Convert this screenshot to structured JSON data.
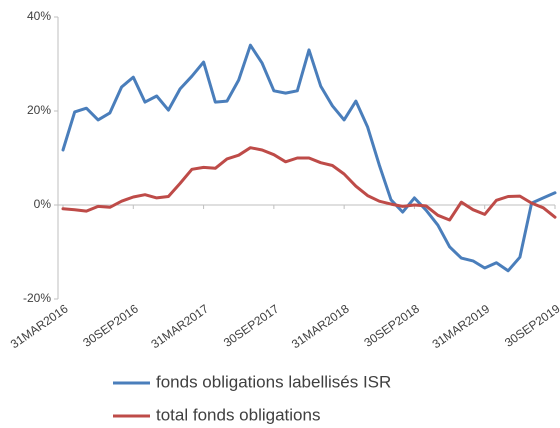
{
  "chart_data": {
    "type": "line",
    "categories": [
      "31MAR2016",
      null,
      null,
      null,
      null,
      null,
      "30SEP2016",
      null,
      null,
      null,
      null,
      null,
      "31MAR2017",
      null,
      null,
      null,
      null,
      null,
      "30SEP2017",
      null,
      null,
      null,
      null,
      null,
      "31MAR2018",
      null,
      null,
      null,
      null,
      null,
      "30SEP2018",
      null,
      null,
      null,
      null,
      null,
      "31MAR2019",
      null,
      null,
      null,
      null,
      null,
      "30SEP2019"
    ],
    "series": [
      {
        "name": "fonds obligations labellisés ISR",
        "color": "#4a7ebb",
        "values": [
          11.7,
          19.8,
          20.6,
          18.1,
          19.6,
          25.1,
          27.2,
          21.9,
          23.2,
          20.2,
          24.7,
          27.4,
          30.4,
          21.9,
          22.1,
          26.6,
          34.0,
          30.2,
          24.3,
          23.8,
          24.3,
          33.0,
          25.3,
          21.1,
          18.1,
          22.1,
          16.6,
          8.5,
          1.1,
          -1.5,
          1.5,
          -1.1,
          -4.3,
          -8.9,
          -11.3,
          -11.9,
          -13.4,
          -12.3,
          -14.0,
          -11.1,
          0.4,
          1.5,
          2.6
        ]
      },
      {
        "name": "total fonds obligations",
        "color": "#be4b48",
        "values": [
          -0.8,
          -1.0,
          -1.3,
          -0.3,
          -0.5,
          0.8,
          1.7,
          2.2,
          1.5,
          1.8,
          4.6,
          7.6,
          8.0,
          7.8,
          9.8,
          10.6,
          12.2,
          11.7,
          10.7,
          9.2,
          10.0,
          10.0,
          9.0,
          8.4,
          6.6,
          4.0,
          2.0,
          0.8,
          0.2,
          -0.3,
          0.0,
          -0.2,
          -2.2,
          -3.2,
          0.6,
          -1.0,
          -2.0,
          1.0,
          1.8,
          1.9,
          0.4,
          -0.6,
          -2.6
        ]
      }
    ],
    "ylim": [
      -20,
      40
    ],
    "yticks": [
      {
        "value": -20,
        "label": "-20%"
      },
      {
        "value": 0,
        "label": "0%"
      },
      {
        "value": 20,
        "label": "20%"
      },
      {
        "value": 40,
        "label": "40%"
      }
    ],
    "grid": false,
    "legend": "bottom"
  }
}
